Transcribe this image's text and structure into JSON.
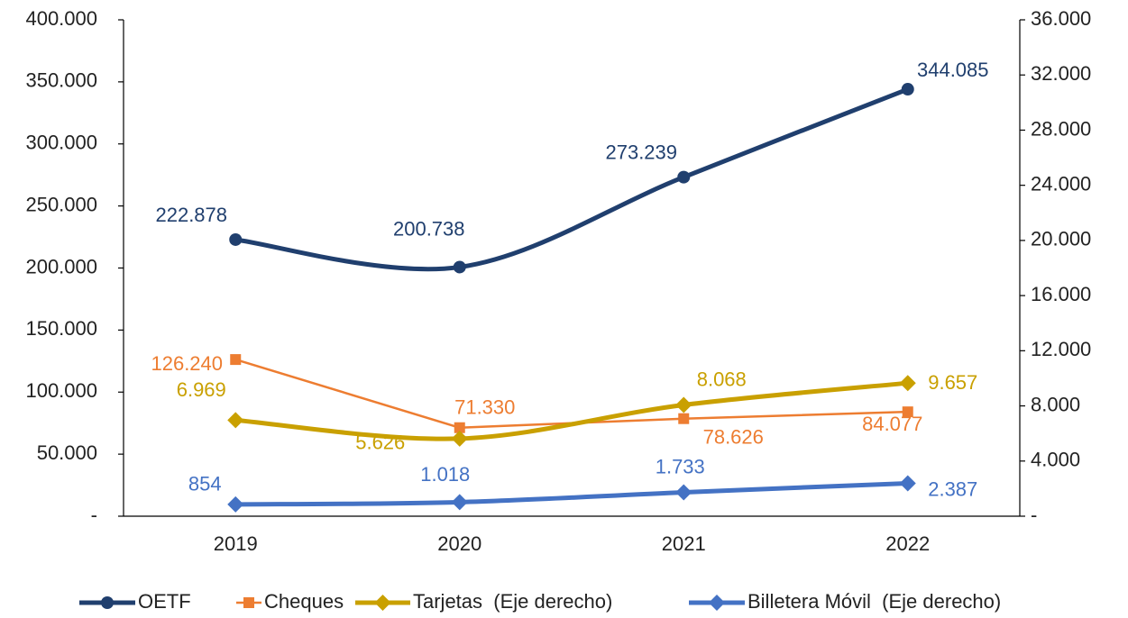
{
  "chart_data": {
    "type": "line",
    "categories": [
      "2019",
      "2020",
      "2021",
      "2022"
    ],
    "ylim": [
      0,
      400000
    ],
    "yticks": [
      {
        "value": 0,
        "label": "-"
      },
      {
        "value": 50000,
        "label": "50.000"
      },
      {
        "value": 100000,
        "label": "100.000"
      },
      {
        "value": 150000,
        "label": "150.000"
      },
      {
        "value": 200000,
        "label": "200.000"
      },
      {
        "value": 250000,
        "label": "250.000"
      },
      {
        "value": 300000,
        "label": "300.000"
      },
      {
        "value": 350000,
        "label": "350.000"
      },
      {
        "value": 400000,
        "label": "400.000"
      }
    ],
    "y2lim": [
      0,
      36000
    ],
    "y2ticks": [
      {
        "value": 0,
        "label": "-"
      },
      {
        "value": 4000,
        "label": "4.000"
      },
      {
        "value": 8000,
        "label": "8.000"
      },
      {
        "value": 12000,
        "label": "12.000"
      },
      {
        "value": 16000,
        "label": "16.000"
      },
      {
        "value": 20000,
        "label": "20.000"
      },
      {
        "value": 24000,
        "label": "24.000"
      },
      {
        "value": 28000,
        "label": "28.000"
      },
      {
        "value": 32000,
        "label": "32.000"
      },
      {
        "value": 36000,
        "label": "36.000"
      }
    ],
    "grid": false,
    "legend": "bottom",
    "series": [
      {
        "name": "OETF",
        "color": "#203f6e",
        "marker": "circle",
        "smooth": true,
        "width": 5,
        "values": [
          222878,
          200738,
          273239,
          344085
        ],
        "value_labels": [
          "222.878",
          "200.738",
          "273.239",
          "344.085"
        ]
      },
      {
        "name": "Cheques",
        "color": "#ed7d31",
        "marker": "square",
        "smooth": false,
        "width": 2.5,
        "values": [
          126240,
          71330,
          78626,
          84077
        ],
        "value_labels": [
          "126.240",
          "71.330",
          "78.626",
          "84.077"
        ]
      },
      {
        "name": "Tarjetas  (Eje derecho)",
        "color": "#c9a000",
        "marker": "diamond",
        "smooth": true,
        "width": 5,
        "axis": "y2",
        "values": [
          6969,
          5626,
          8068,
          9657
        ],
        "value_labels": [
          "6.969",
          "5.626",
          "8.068",
          "9.657"
        ]
      },
      {
        "name": "Billetera Móvil  (Eje derecho)",
        "color": "#4472c4",
        "marker": "diamond",
        "smooth": true,
        "width": 5,
        "axis": "y2",
        "values": [
          854,
          1018,
          1733,
          2387
        ],
        "value_labels": [
          "854",
          "1.018",
          "1.733",
          "2.387"
        ]
      }
    ]
  }
}
